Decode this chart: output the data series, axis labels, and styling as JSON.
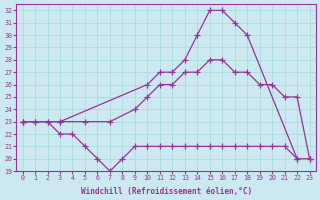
{
  "xlabel": "Windchill (Refroidissement éolien,°C)",
  "xlim": [
    -0.5,
    23.5
  ],
  "ylim": [
    19,
    32.5
  ],
  "xticks": [
    0,
    1,
    2,
    3,
    4,
    5,
    6,
    7,
    8,
    9,
    10,
    11,
    12,
    13,
    14,
    15,
    16,
    17,
    18,
    19,
    20,
    21,
    22,
    23
  ],
  "yticks": [
    19,
    20,
    21,
    22,
    23,
    24,
    25,
    26,
    27,
    28,
    29,
    30,
    31,
    32
  ],
  "bg_color": "#cce8f0",
  "line_color": "#993399",
  "grid_color": "#aadddd",
  "series1_x": [
    0,
    1,
    2,
    3,
    10,
    11,
    12,
    13,
    14,
    15,
    16,
    17,
    18,
    22
  ],
  "series1_y": [
    23,
    23,
    23,
    23,
    26,
    27,
    27,
    28,
    30,
    32,
    32,
    31,
    30,
    20
  ],
  "series2_x": [
    0,
    3,
    5,
    7,
    9,
    10,
    11,
    12,
    13,
    14,
    15,
    16,
    17,
    18,
    19,
    20,
    21,
    22,
    23
  ],
  "series2_y": [
    23,
    23,
    23,
    23,
    24,
    25,
    26,
    26,
    27,
    27,
    28,
    28,
    27,
    27,
    26,
    26,
    25,
    25,
    20
  ],
  "series3_x": [
    0,
    1,
    2,
    3,
    4,
    5,
    6,
    7,
    8,
    9,
    10,
    11,
    12,
    13,
    14,
    15,
    16,
    17,
    18,
    19,
    20,
    21,
    22,
    23
  ],
  "series3_y": [
    23,
    23,
    23,
    22,
    22,
    21,
    20,
    19,
    20,
    21,
    21,
    21,
    21,
    21,
    21,
    21,
    21,
    21,
    21,
    21,
    21,
    21,
    20,
    20
  ]
}
